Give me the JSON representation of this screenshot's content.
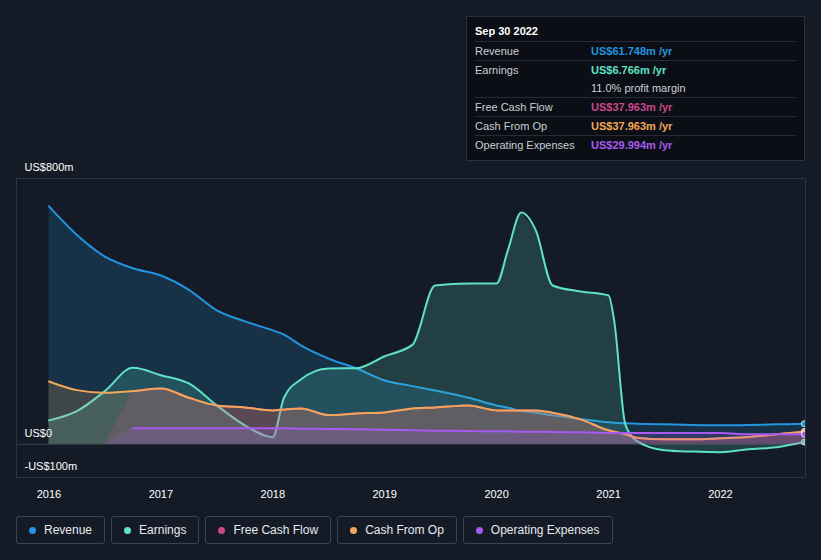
{
  "chart_data": {
    "type": "area",
    "x": [
      2016,
      2016.25,
      2016.5,
      2016.75,
      2017,
      2017.25,
      2017.5,
      2017.75,
      2018,
      2018.1,
      2018.25,
      2018.5,
      2018.75,
      2019,
      2019.25,
      2019.45,
      2019.75,
      2020,
      2020.1,
      2020.22,
      2020.35,
      2020.5,
      2020.75,
      2021,
      2021.05,
      2021.15,
      2021.25,
      2021.5,
      2021.75,
      2022,
      2022.25,
      2022.5,
      2022.75
    ],
    "series": [
      {
        "name": "Revenue",
        "color": "#2394df",
        "values": [
          716,
          630,
          565,
          530,
          508,
          465,
          403,
          370,
          343,
          330,
          298,
          258,
          228,
          192,
          175,
          162,
          140,
          117,
          110,
          100,
          95,
          87,
          76,
          66,
          65,
          63,
          62,
          60,
          58,
          57,
          58,
          60,
          61.748
        ]
      },
      {
        "name": "Earnings",
        "color": "#5fe1c5",
        "values": [
          72,
          100,
          160,
          230,
          208,
          183,
          117,
          57,
          21,
          140,
          195,
          228,
          229,
          265,
          300,
          478,
          484,
          484,
          583,
          698,
          644,
          478,
          460,
          448,
          373,
          60,
          10,
          -18,
          -22,
          -24,
          -15,
          -9,
          6.766
        ]
      },
      {
        "name": "Free Cash Flow",
        "color": "#c8488a",
        "values": [
          null,
          null,
          null,
          160,
          168,
          140,
          117,
          111,
          102,
          105,
          108,
          88,
          93,
          96,
          108,
          111,
          117,
          102,
          102,
          102,
          102,
          95,
          75,
          42,
          38,
          30,
          20,
          15,
          15,
          18,
          22,
          30,
          37.963
        ]
      },
      {
        "name": "Cash From Op",
        "color": "#f2a65a",
        "values": [
          189,
          163,
          155,
          160,
          168,
          140,
          117,
          111,
          102,
          105,
          108,
          88,
          93,
          96,
          108,
          111,
          117,
          102,
          102,
          102,
          102,
          95,
          75,
          42,
          38,
          30,
          20,
          15,
          15,
          18,
          22,
          30,
          37.963
        ]
      },
      {
        "name": "Operating Expenses",
        "color": "#a65af0",
        "values": [
          null,
          null,
          null,
          48,
          48,
          48,
          48,
          48,
          48,
          48,
          47,
          46,
          45,
          44,
          42,
          41,
          40,
          39,
          39,
          38,
          38,
          37,
          36,
          34,
          34,
          34,
          34,
          34,
          34,
          34,
          30,
          30,
          29.994
        ]
      }
    ],
    "xlim": [
      2015.71,
      2022.76
    ],
    "xticks": [
      2016,
      2017,
      2018,
      2019,
      2020,
      2021,
      2022
    ],
    "ylim": [
      -100,
      800
    ],
    "yticks": [
      {
        "value": -100,
        "label": "-US$100m"
      },
      {
        "value": 0,
        "label": "US$0"
      },
      {
        "value": 800,
        "label": "US$800m"
      }
    ],
    "grid": true,
    "legend": "bottom",
    "annotation": {
      "title": "Sep 30 2022",
      "rows": [
        {
          "label": "Revenue",
          "value": "US$61.748m /yr"
        },
        {
          "label": "Earnings",
          "value": "US$6.766m /yr"
        },
        {
          "value": "11.0% profit margin"
        },
        {
          "label": "Free Cash Flow",
          "value": "US$37.963m /yr"
        },
        {
          "label": "Cash From Op",
          "value": "US$37.963m /yr"
        },
        {
          "label": "Operating Expenses",
          "value": "US$29.994m /yr"
        }
      ]
    }
  }
}
